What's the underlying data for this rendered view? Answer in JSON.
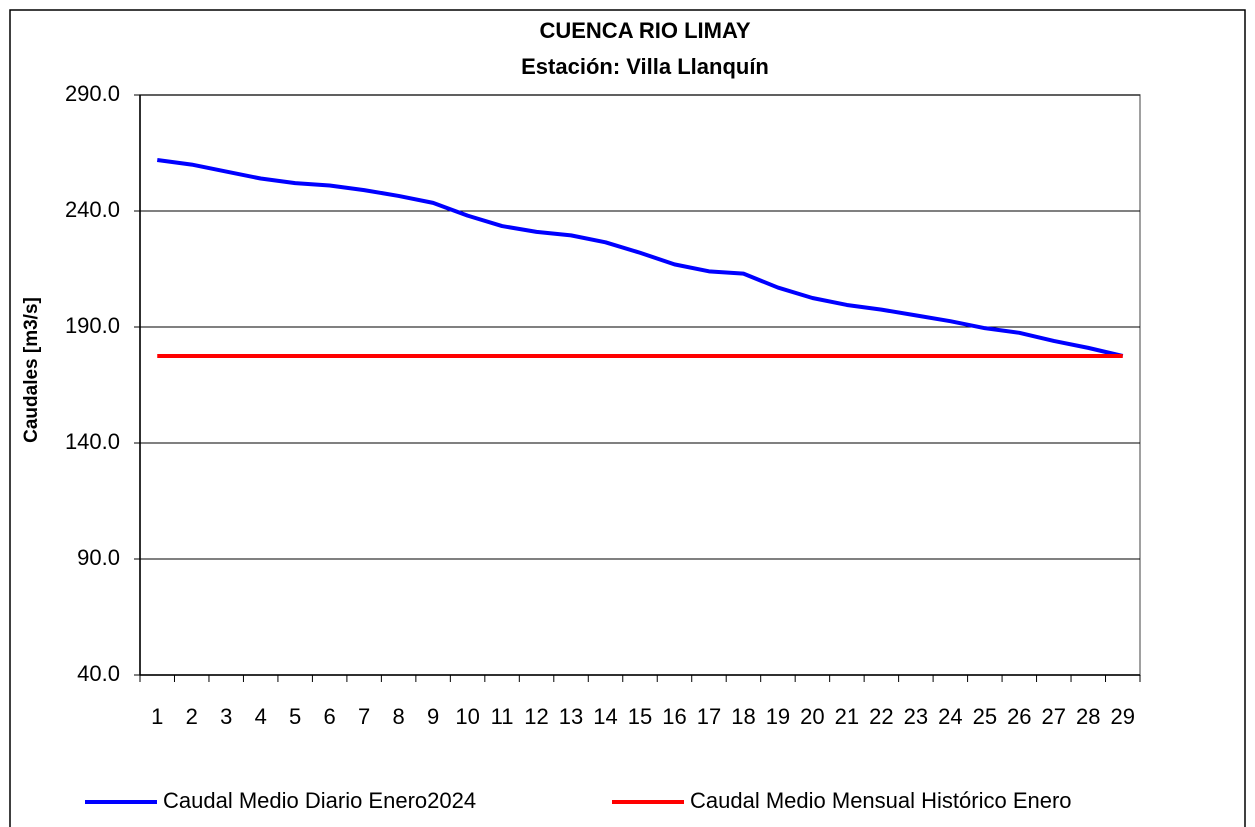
{
  "chart_data": {
    "type": "line",
    "title": "CUENCA RIO LIMAY",
    "subtitle": "Estación: Villa Llanquín",
    "y_label": "Caudales [m3/s]",
    "categories": [
      "1",
      "2",
      "3",
      "4",
      "5",
      "6",
      "7",
      "8",
      "9",
      "10",
      "11",
      "12",
      "13",
      "14",
      "15",
      "16",
      "17",
      "18",
      "19",
      "20",
      "21",
      "22",
      "23",
      "24",
      "25",
      "26",
      "27",
      "28",
      "29"
    ],
    "series": [
      {
        "name": "Caudal Medio Diario Enero2024",
        "color": "#0000ff",
        "values": [
          262,
          260,
          257,
          254,
          252,
          251,
          249,
          246.5,
          243.5,
          238,
          233.5,
          231,
          229.5,
          226.5,
          222,
          217,
          214,
          213,
          207,
          202.5,
          199.5,
          197.5,
          195,
          192.5,
          189.5,
          187.5,
          184,
          181,
          177.5
        ]
      },
      {
        "name": "Caudal Medio Mensual Histórico Enero",
        "color": "#ff0000",
        "values": [
          177.5,
          177.5,
          177.5,
          177.5,
          177.5,
          177.5,
          177.5,
          177.5,
          177.5,
          177.5,
          177.5,
          177.5,
          177.5,
          177.5,
          177.5,
          177.5,
          177.5,
          177.5,
          177.5,
          177.5,
          177.5,
          177.5,
          177.5,
          177.5,
          177.5,
          177.5,
          177.5,
          177.5,
          177.5
        ]
      }
    ],
    "ylim": [
      40,
      290
    ],
    "yticks": [
      {
        "value": 40,
        "label": "40.0"
      },
      {
        "value": 90,
        "label": "90.0"
      },
      {
        "value": 140,
        "label": "140.0"
      },
      {
        "value": 190,
        "label": "190.0"
      },
      {
        "value": 240,
        "label": "240.0"
      },
      {
        "value": 290,
        "label": "290.0"
      }
    ],
    "grid": true
  }
}
